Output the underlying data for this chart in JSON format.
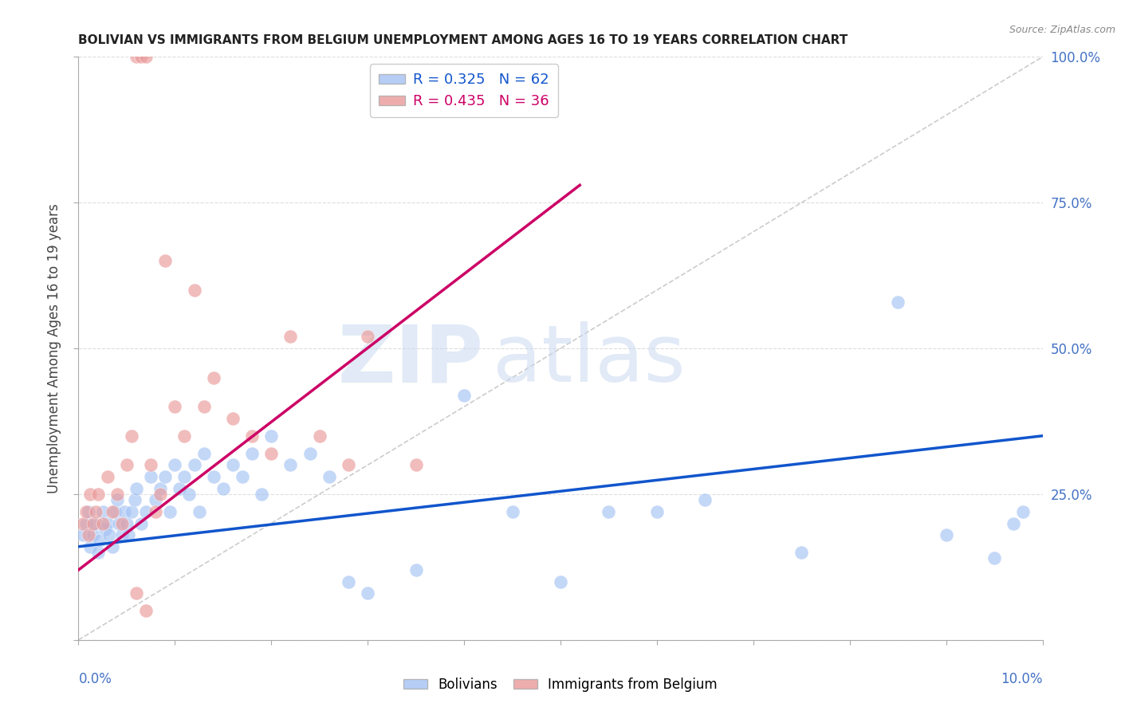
{
  "title": "BOLIVIAN VS IMMIGRANTS FROM BELGIUM UNEMPLOYMENT AMONG AGES 16 TO 19 YEARS CORRELATION CHART",
  "source": "Source: ZipAtlas.com",
  "ylabel": "Unemployment Among Ages 16 to 19 years",
  "xlim": [
    0.0,
    10.0
  ],
  "ylim": [
    0.0,
    100.0
  ],
  "yticks": [
    0.0,
    25.0,
    50.0,
    75.0,
    100.0
  ],
  "xtick_positions": [
    0,
    1,
    2,
    3,
    4,
    5,
    6,
    7,
    8,
    9,
    10
  ],
  "legend1_r": "R = 0.325",
  "legend1_n": "N = 62",
  "legend2_r": "R = 0.435",
  "legend2_n": "N = 36",
  "blue_color": "#a4c2f4",
  "pink_color": "#ea9999",
  "blue_line_color": "#1155cc",
  "pink_line_color": "#cc0066",
  "diagonal_color": "#cccccc",
  "blue_scatter_x": [
    0.05,
    0.08,
    0.1,
    0.12,
    0.15,
    0.18,
    0.2,
    0.22,
    0.25,
    0.28,
    0.3,
    0.32,
    0.35,
    0.38,
    0.4,
    0.42,
    0.45,
    0.48,
    0.5,
    0.52,
    0.55,
    0.58,
    0.6,
    0.65,
    0.7,
    0.75,
    0.8,
    0.85,
    0.9,
    0.95,
    1.0,
    1.05,
    1.1,
    1.15,
    1.2,
    1.25,
    1.3,
    1.4,
    1.5,
    1.6,
    1.7,
    1.8,
    1.9,
    2.0,
    2.2,
    2.4,
    2.6,
    2.8,
    3.0,
    3.5,
    4.0,
    4.5,
    5.0,
    5.5,
    6.0,
    6.5,
    7.5,
    8.5,
    9.0,
    9.5,
    9.7,
    9.8
  ],
  "blue_scatter_y": [
    18.0,
    20.0,
    22.0,
    16.0,
    18.0,
    20.0,
    15.0,
    17.0,
    22.0,
    19.0,
    20.0,
    18.0,
    16.0,
    22.0,
    24.0,
    20.0,
    18.0,
    22.0,
    20.0,
    18.0,
    22.0,
    24.0,
    26.0,
    20.0,
    22.0,
    28.0,
    24.0,
    26.0,
    28.0,
    22.0,
    30.0,
    26.0,
    28.0,
    25.0,
    30.0,
    22.0,
    32.0,
    28.0,
    26.0,
    30.0,
    28.0,
    32.0,
    25.0,
    35.0,
    30.0,
    32.0,
    28.0,
    10.0,
    8.0,
    12.0,
    42.0,
    22.0,
    10.0,
    22.0,
    22.0,
    24.0,
    15.0,
    58.0,
    18.0,
    14.0,
    20.0,
    22.0
  ],
  "pink_scatter_x": [
    0.05,
    0.08,
    0.1,
    0.12,
    0.15,
    0.18,
    0.2,
    0.25,
    0.3,
    0.35,
    0.4,
    0.45,
    0.5,
    0.55,
    0.6,
    0.65,
    0.7,
    0.75,
    0.8,
    0.85,
    0.9,
    1.0,
    1.1,
    1.2,
    1.3,
    1.4,
    1.6,
    1.8,
    2.0,
    2.2,
    2.5,
    2.8,
    3.0,
    3.5,
    0.6,
    0.7
  ],
  "pink_scatter_y": [
    20.0,
    22.0,
    18.0,
    25.0,
    20.0,
    22.0,
    25.0,
    20.0,
    28.0,
    22.0,
    25.0,
    20.0,
    30.0,
    35.0,
    100.0,
    100.0,
    100.0,
    30.0,
    22.0,
    25.0,
    65.0,
    40.0,
    35.0,
    60.0,
    40.0,
    45.0,
    38.0,
    35.0,
    32.0,
    52.0,
    35.0,
    30.0,
    52.0,
    30.0,
    8.0,
    5.0
  ],
  "blue_line_x": [
    0.0,
    10.0
  ],
  "blue_line_y": [
    16.0,
    35.0
  ],
  "pink_line_x": [
    0.0,
    5.2
  ],
  "pink_line_y": [
    12.0,
    78.0
  ],
  "diag_line_x": [
    0.0,
    10.0
  ],
  "diag_line_y": [
    0.0,
    100.0
  ],
  "grid_color": "#dddddd",
  "spine_color": "#aaaaaa",
  "tick_label_color": "#4472c4",
  "ylabel_color": "#444444",
  "title_color": "#222222",
  "source_color": "#888888",
  "watermark_zip_color": "#c9d9f0",
  "watermark_atlas_color": "#c9d9f0"
}
